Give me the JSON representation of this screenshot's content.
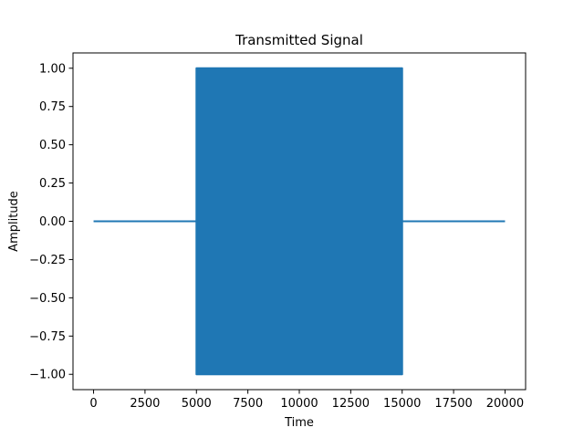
{
  "chart_data": {
    "type": "line",
    "title": "Transmitted Signal",
    "xlabel": "Time",
    "ylabel": "Amplitude",
    "xlim": [
      -1000,
      21000
    ],
    "ylim": [
      -1.1,
      1.1
    ],
    "x_ticks": [
      0,
      2500,
      5000,
      7500,
      10000,
      12500,
      15000,
      17500,
      20000
    ],
    "y_ticks": [
      -1.0,
      -0.75,
      -0.5,
      -0.25,
      0.0,
      0.25,
      0.5,
      0.75,
      1.0
    ],
    "x_tick_labels": [
      "0",
      "2500",
      "5000",
      "7500",
      "10000",
      "12500",
      "15000",
      "17500",
      "20000"
    ],
    "y_tick_labels": [
      "−1.00",
      "−0.75",
      "−0.50",
      "−0.25",
      "0.00",
      "0.25",
      "0.50",
      "0.75",
      "1.00"
    ],
    "grid": false,
    "series": [
      {
        "color": "#1f77b4",
        "segments": [
          {
            "x_start": 0,
            "x_end": 5000,
            "amplitude_min": 0.0,
            "amplitude_max": 0.0
          },
          {
            "x_start": 5000,
            "x_end": 15000,
            "amplitude_min": -1.0,
            "amplitude_max": 1.0
          },
          {
            "x_start": 15000,
            "x_end": 20000,
            "amplitude_min": 0.0,
            "amplitude_max": 0.0
          }
        ]
      }
    ]
  }
}
